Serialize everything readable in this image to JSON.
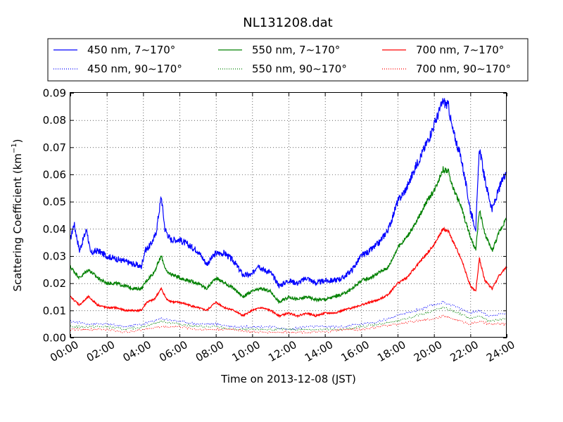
{
  "chart_data": {
    "type": "line",
    "title": "NL131208.dat",
    "xlabel": "Time on 2013-12-08 (JST)",
    "ylabel": "Scattering Coefficient (km",
    "ylabel_superscript": "−1",
    "ylabel_close": ")",
    "xlim": [
      "00:00",
      "24:00"
    ],
    "ylim": [
      0,
      0.09
    ],
    "grid": true,
    "legend_position": "top, above plot, 3 columns",
    "x_ticks": [
      "00:00",
      "02:00",
      "04:00",
      "06:00",
      "08:00",
      "10:00",
      "12:00",
      "14:00",
      "16:00",
      "18:00",
      "20:00",
      "22:00",
      "24:00"
    ],
    "y_ticks": [
      "0.00",
      "0.01",
      "0.02",
      "0.03",
      "0.04",
      "0.05",
      "0.06",
      "0.07",
      "0.08",
      "0.09"
    ],
    "series": [
      {
        "name": "450 nm, 7∼170°",
        "color": "#0000ff",
        "style": "solid",
        "points": [
          [
            0,
            0.036
          ],
          [
            0.2,
            0.042
          ],
          [
            0.5,
            0.032
          ],
          [
            0.9,
            0.04
          ],
          [
            1.1,
            0.031
          ],
          [
            1.5,
            0.032
          ],
          [
            2,
            0.03
          ],
          [
            2.5,
            0.029
          ],
          [
            3,
            0.028
          ],
          [
            3.5,
            0.027
          ],
          [
            3.9,
            0.026
          ],
          [
            4.1,
            0.032
          ],
          [
            4.4,
            0.034
          ],
          [
            4.7,
            0.038
          ],
          [
            5,
            0.052
          ],
          [
            5.2,
            0.04
          ],
          [
            5.5,
            0.036
          ],
          [
            6,
            0.036
          ],
          [
            6.5,
            0.034
          ],
          [
            7,
            0.032
          ],
          [
            7.5,
            0.027
          ],
          [
            8,
            0.031
          ],
          [
            8.5,
            0.031
          ],
          [
            9,
            0.028
          ],
          [
            9.5,
            0.023
          ],
          [
            10,
            0.023
          ],
          [
            10.3,
            0.027
          ],
          [
            10.6,
            0.025
          ],
          [
            11,
            0.024
          ],
          [
            11.5,
            0.019
          ],
          [
            12,
            0.021
          ],
          [
            12.5,
            0.02
          ],
          [
            13,
            0.022
          ],
          [
            13.5,
            0.02
          ],
          [
            14,
            0.021
          ],
          [
            14.5,
            0.021
          ],
          [
            15,
            0.022
          ],
          [
            15.5,
            0.025
          ],
          [
            16,
            0.03
          ],
          [
            16.5,
            0.032
          ],
          [
            17,
            0.035
          ],
          [
            17.5,
            0.04
          ],
          [
            18,
            0.05
          ],
          [
            18.5,
            0.055
          ],
          [
            19,
            0.063
          ],
          [
            19.5,
            0.07
          ],
          [
            20,
            0.078
          ],
          [
            20.5,
            0.087
          ],
          [
            20.8,
            0.085
          ],
          [
            21,
            0.077
          ],
          [
            21.5,
            0.066
          ],
          [
            22,
            0.047
          ],
          [
            22.3,
            0.04
          ],
          [
            22.5,
            0.07
          ],
          [
            22.8,
            0.058
          ],
          [
            23.2,
            0.047
          ],
          [
            23.6,
            0.055
          ],
          [
            24,
            0.062
          ]
        ]
      },
      {
        "name": "550 nm, 7∼170°",
        "color": "#008000",
        "style": "solid",
        "points": [
          [
            0,
            0.026
          ],
          [
            0.5,
            0.022
          ],
          [
            1,
            0.025
          ],
          [
            1.5,
            0.022
          ],
          [
            2,
            0.02
          ],
          [
            2.5,
            0.02
          ],
          [
            3,
            0.019
          ],
          [
            3.5,
            0.018
          ],
          [
            3.9,
            0.018
          ],
          [
            4.2,
            0.021
          ],
          [
            4.6,
            0.024
          ],
          [
            5,
            0.03
          ],
          [
            5.3,
            0.024
          ],
          [
            5.7,
            0.023
          ],
          [
            6,
            0.022
          ],
          [
            6.5,
            0.021
          ],
          [
            7,
            0.02
          ],
          [
            7.5,
            0.018
          ],
          [
            8,
            0.022
          ],
          [
            8.5,
            0.02
          ],
          [
            9,
            0.018
          ],
          [
            9.5,
            0.015
          ],
          [
            10,
            0.017
          ],
          [
            10.5,
            0.018
          ],
          [
            11,
            0.017
          ],
          [
            11.5,
            0.013
          ],
          [
            12,
            0.015
          ],
          [
            12.5,
            0.014
          ],
          [
            13,
            0.015
          ],
          [
            13.5,
            0.014
          ],
          [
            14,
            0.014
          ],
          [
            14.5,
            0.015
          ],
          [
            15,
            0.016
          ],
          [
            15.5,
            0.018
          ],
          [
            16,
            0.021
          ],
          [
            16.5,
            0.022
          ],
          [
            17,
            0.024
          ],
          [
            17.5,
            0.026
          ],
          [
            18,
            0.033
          ],
          [
            18.5,
            0.037
          ],
          [
            19,
            0.042
          ],
          [
            19.5,
            0.049
          ],
          [
            20,
            0.054
          ],
          [
            20.5,
            0.062
          ],
          [
            20.8,
            0.061
          ],
          [
            21,
            0.056
          ],
          [
            21.5,
            0.048
          ],
          [
            22,
            0.037
          ],
          [
            22.3,
            0.032
          ],
          [
            22.5,
            0.047
          ],
          [
            22.8,
            0.038
          ],
          [
            23.2,
            0.032
          ],
          [
            23.6,
            0.039
          ],
          [
            24,
            0.044
          ]
        ]
      },
      {
        "name": "700 nm, 7∼170°",
        "color": "#ff0000",
        "style": "solid",
        "points": [
          [
            0,
            0.015
          ],
          [
            0.5,
            0.012
          ],
          [
            1,
            0.015
          ],
          [
            1.5,
            0.012
          ],
          [
            2,
            0.011
          ],
          [
            2.5,
            0.011
          ],
          [
            3,
            0.01
          ],
          [
            3.5,
            0.01
          ],
          [
            3.9,
            0.01
          ],
          [
            4.2,
            0.013
          ],
          [
            4.6,
            0.014
          ],
          [
            5,
            0.018
          ],
          [
            5.3,
            0.014
          ],
          [
            5.7,
            0.013
          ],
          [
            6,
            0.013
          ],
          [
            6.5,
            0.012
          ],
          [
            7,
            0.011
          ],
          [
            7.5,
            0.01
          ],
          [
            8,
            0.013
          ],
          [
            8.5,
            0.011
          ],
          [
            9,
            0.01
          ],
          [
            9.5,
            0.008
          ],
          [
            10,
            0.01
          ],
          [
            10.5,
            0.011
          ],
          [
            11,
            0.01
          ],
          [
            11.5,
            0.008
          ],
          [
            12,
            0.009
          ],
          [
            12.5,
            0.008
          ],
          [
            13,
            0.009
          ],
          [
            13.5,
            0.008
          ],
          [
            14,
            0.009
          ],
          [
            14.5,
            0.009
          ],
          [
            15,
            0.01
          ],
          [
            15.5,
            0.011
          ],
          [
            16,
            0.012
          ],
          [
            16.5,
            0.013
          ],
          [
            17,
            0.014
          ],
          [
            17.5,
            0.016
          ],
          [
            18,
            0.02
          ],
          [
            18.5,
            0.022
          ],
          [
            19,
            0.026
          ],
          [
            19.5,
            0.03
          ],
          [
            20,
            0.034
          ],
          [
            20.5,
            0.04
          ],
          [
            20.8,
            0.039
          ],
          [
            21,
            0.036
          ],
          [
            21.5,
            0.029
          ],
          [
            22,
            0.019
          ],
          [
            22.3,
            0.017
          ],
          [
            22.5,
            0.029
          ],
          [
            22.8,
            0.021
          ],
          [
            23.2,
            0.018
          ],
          [
            23.6,
            0.023
          ],
          [
            24,
            0.026
          ]
        ]
      },
      {
        "name": "450 nm, 90∼170°",
        "color": "#0000ff",
        "style": "dotted",
        "points": [
          [
            0,
            0.006
          ],
          [
            1,
            0.005
          ],
          [
            2,
            0.005
          ],
          [
            3,
            0.004
          ],
          [
            4,
            0.005
          ],
          [
            5,
            0.007
          ],
          [
            6,
            0.006
          ],
          [
            7,
            0.005
          ],
          [
            8,
            0.005
          ],
          [
            9,
            0.004
          ],
          [
            10,
            0.004
          ],
          [
            11,
            0.004
          ],
          [
            12,
            0.003
          ],
          [
            13,
            0.004
          ],
          [
            14,
            0.004
          ],
          [
            15,
            0.004
          ],
          [
            16,
            0.005
          ],
          [
            17,
            0.006
          ],
          [
            18,
            0.008
          ],
          [
            19,
            0.01
          ],
          [
            20,
            0.012
          ],
          [
            20.5,
            0.013
          ],
          [
            21,
            0.012
          ],
          [
            22,
            0.009
          ],
          [
            22.5,
            0.01
          ],
          [
            23,
            0.008
          ],
          [
            24,
            0.009
          ]
        ]
      },
      {
        "name": "550 nm, 90∼170°",
        "color": "#008000",
        "style": "dotted",
        "points": [
          [
            0,
            0.004
          ],
          [
            1,
            0.004
          ],
          [
            2,
            0.004
          ],
          [
            3,
            0.003
          ],
          [
            4,
            0.004
          ],
          [
            5,
            0.006
          ],
          [
            6,
            0.005
          ],
          [
            7,
            0.004
          ],
          [
            8,
            0.004
          ],
          [
            9,
            0.003
          ],
          [
            10,
            0.003
          ],
          [
            11,
            0.003
          ],
          [
            12,
            0.003
          ],
          [
            13,
            0.003
          ],
          [
            14,
            0.003
          ],
          [
            15,
            0.003
          ],
          [
            16,
            0.004
          ],
          [
            17,
            0.005
          ],
          [
            18,
            0.006
          ],
          [
            19,
            0.008
          ],
          [
            20,
            0.01
          ],
          [
            20.5,
            0.011
          ],
          [
            21,
            0.01
          ],
          [
            22,
            0.007
          ],
          [
            22.5,
            0.008
          ],
          [
            23,
            0.006
          ],
          [
            24,
            0.007
          ]
        ]
      },
      {
        "name": "700 nm, 90∼170°",
        "color": "#ff0000",
        "style": "dotted",
        "points": [
          [
            0,
            0.003
          ],
          [
            1,
            0.003
          ],
          [
            2,
            0.003
          ],
          [
            3,
            0.002
          ],
          [
            4,
            0.003
          ],
          [
            5,
            0.004
          ],
          [
            6,
            0.004
          ],
          [
            7,
            0.003
          ],
          [
            8,
            0.003
          ],
          [
            9,
            0.003
          ],
          [
            10,
            0.002
          ],
          [
            11,
            0.002
          ],
          [
            12,
            0.002
          ],
          [
            13,
            0.002
          ],
          [
            14,
            0.002
          ],
          [
            15,
            0.003
          ],
          [
            16,
            0.003
          ],
          [
            17,
            0.004
          ],
          [
            18,
            0.005
          ],
          [
            19,
            0.006
          ],
          [
            20,
            0.007
          ],
          [
            20.5,
            0.008
          ],
          [
            21,
            0.007
          ],
          [
            22,
            0.005
          ],
          [
            22.5,
            0.006
          ],
          [
            23,
            0.005
          ],
          [
            24,
            0.005
          ]
        ]
      }
    ]
  }
}
